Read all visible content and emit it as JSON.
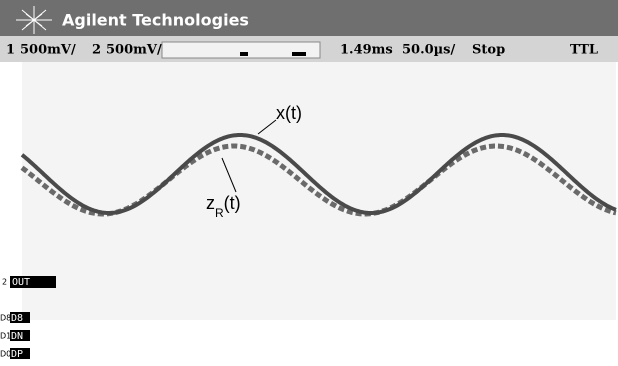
{
  "header": {
    "title": "Agilent Technologies"
  },
  "status": {
    "ch1": "1",
    "ch1_scale": "500mV/",
    "ch2": "2",
    "ch2_scale": "500mV/",
    "delay": "1.49ms",
    "timebase": "50.0µs/",
    "run_state": "Stop",
    "trigger": "TTL"
  },
  "annotations": {
    "x": "x(t)",
    "z_base": "z",
    "z_sub": "R",
    "z_tail": "(t)"
  },
  "channels": {
    "ch2_marker": "2",
    "out": "OUT",
    "d8_prefix": "D8",
    "d8": "D8",
    "dn_prefix": "D1",
    "dn": "DN",
    "dp_prefix": "D0",
    "dp": "DP"
  }
}
